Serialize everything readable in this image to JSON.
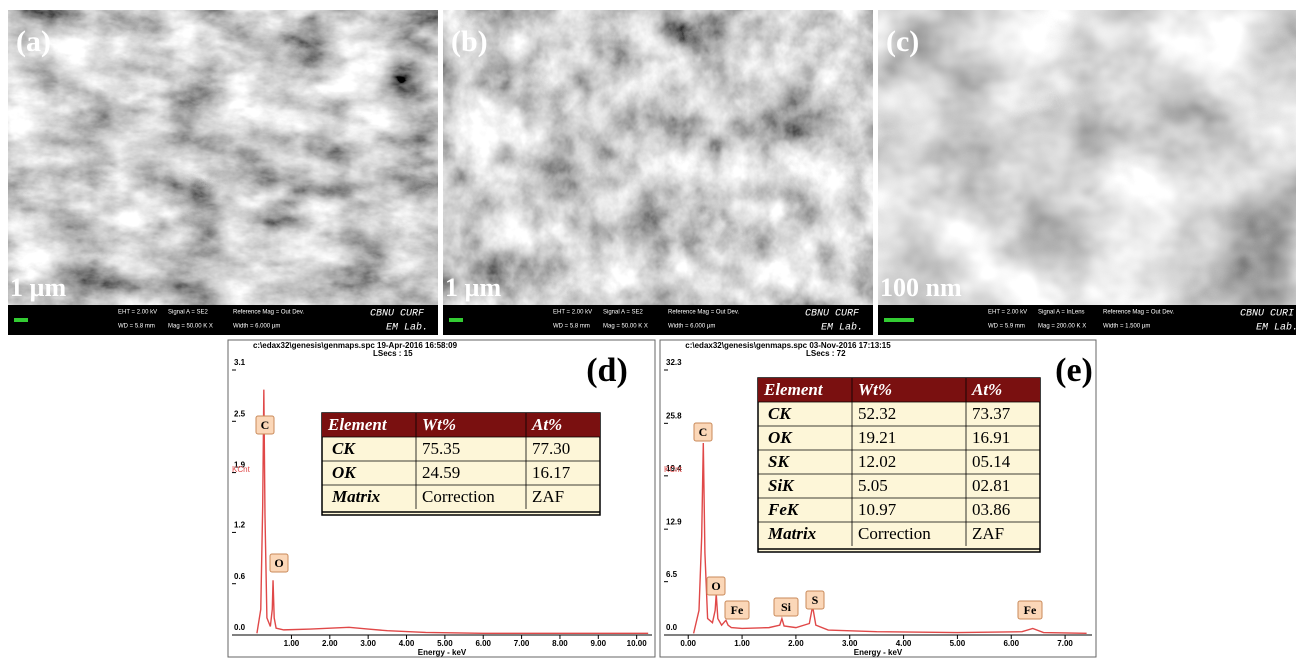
{
  "panels": [
    {
      "label": "(a)",
      "scale_bar": "1 µm",
      "info": [
        "EHT = 2.00 kV",
        "WD = 5.8 mm",
        "Signal A = SE2",
        "Mag = 50.00 K X",
        "Reference Mag = Out Dev.",
        "Width = 6.000 µm"
      ],
      "lab": [
        "CBNU CURF",
        "EM Lab."
      ]
    },
    {
      "label": "(b)",
      "scale_bar": "1 µm",
      "info": [
        "EHT = 2.00 kV",
        "WD = 5.8 mm",
        "Signal A = SE2",
        "Mag = 50.00 K X",
        "Reference Mag = Out Dev.",
        "Width = 6.000 µm"
      ],
      "lab": [
        "CBNU CURF",
        "EM Lab."
      ]
    },
    {
      "label": "(c)",
      "scale_bar": "100 nm",
      "info": [
        "EHT = 2.00 kV",
        "WD = 5.9 mm",
        "Signal A = InLens",
        "Mag = 200.00 K X",
        "Reference Mag = Out Dev.",
        "Width = 1.500 µm"
      ],
      "lab": [
        "CBNU CURI",
        "EM Lab."
      ]
    }
  ],
  "chart_data": [
    {
      "type": "line",
      "label": "(d)",
      "header": "c:\\edax32\\genesis\\genmaps.spc  19-Apr-2016 16:58:09",
      "lsecs": "LSecs : 15",
      "ylabel": "KCnt",
      "xlabel": "Energy - keV",
      "color": "#e04848",
      "x": [
        0.1,
        0.2,
        0.25,
        0.28,
        0.31,
        0.36,
        0.45,
        0.5,
        0.52,
        0.55,
        0.6,
        0.8,
        1.5,
        2.0,
        2.5,
        3.0,
        3.5,
        4.5,
        6,
        8,
        10.3
      ],
      "values": [
        0.02,
        0.3,
        1.5,
        2.87,
        1.4,
        0.2,
        0.1,
        0.3,
        0.64,
        0.2,
        0.08,
        0.06,
        0.07,
        0.08,
        0.09,
        0.07,
        0.05,
        0.03,
        0.02,
        0.02,
        0.02
      ],
      "xlim": [
        -0.55,
        10.4
      ],
      "ylim": [
        0,
        3.1
      ],
      "xticks": [
        {
          "value": 1,
          "label": "1.00"
        },
        {
          "value": 2,
          "label": "2.00"
        },
        {
          "value": 3,
          "label": "3.00"
        },
        {
          "value": 4,
          "label": "4.00"
        },
        {
          "value": 5,
          "label": "5.00"
        },
        {
          "value": 6,
          "label": "6.00"
        },
        {
          "value": 7,
          "label": "7.00"
        },
        {
          "value": 8,
          "label": "8.00"
        },
        {
          "value": 9,
          "label": "9.00"
        },
        {
          "value": 10,
          "label": "10.00"
        }
      ],
      "yticks": [
        {
          "value": 0,
          "label": "0.0"
        },
        0.6,
        1.2,
        1.9,
        2.5,
        3.1
      ],
      "peak_labels": [
        "C",
        "O"
      ],
      "table": {
        "header": [
          "Element",
          "Wt%",
          "At%"
        ],
        "rows": [
          [
            "CK",
            "75.35",
            "77.30"
          ],
          [
            "OK",
            "24.59",
            "16.17"
          ],
          [
            "Matrix",
            "Correction",
            "ZAF"
          ]
        ]
      }
    },
    {
      "type": "line",
      "label": "(e)",
      "header": "c:\\edax32\\genesis\\genmaps.spc  03-Nov-2016 17:13:15",
      "lsecs": "LSecs : 72",
      "ylabel": "KCnt",
      "xlabel": "Energy - keV",
      "color": "#e04848",
      "x": [
        0.1,
        0.2,
        0.25,
        0.28,
        0.31,
        0.36,
        0.45,
        0.5,
        0.52,
        0.55,
        0.62,
        0.7,
        0.74,
        0.8,
        1.0,
        1.5,
        1.7,
        1.74,
        1.78,
        2.0,
        2.25,
        2.31,
        2.37,
        2.6,
        3.5,
        5,
        6.2,
        6.4,
        6.6,
        7.4
      ],
      "values": [
        0.2,
        3,
        12,
        23.4,
        10,
        2,
        1.5,
        3,
        5,
        2,
        1.2,
        1.8,
        1.2,
        0.9,
        0.8,
        0.9,
        1.2,
        2,
        1.1,
        0.9,
        1.4,
        3.5,
        1.2,
        0.6,
        0.4,
        0.3,
        0.4,
        0.8,
        0.3,
        0.2
      ],
      "xlim": [
        -0.45,
        7.5
      ],
      "ylim": [
        0,
        32.3
      ],
      "xticks": [
        {
          "value": 0,
          "label": "0.00"
        },
        {
          "value": 1,
          "label": "1.00"
        },
        {
          "value": 2,
          "label": "2.00"
        },
        {
          "value": 3,
          "label": "3.00"
        },
        {
          "value": 4,
          "label": "4.00"
        },
        {
          "value": 5,
          "label": "5.00"
        },
        {
          "value": 6,
          "label": "6.00"
        },
        {
          "value": 7,
          "label": "7.00"
        }
      ],
      "yticks": [
        {
          "value": 0,
          "label": "0.0"
        },
        6.5,
        12.9,
        19.4,
        25.8,
        32.3
      ],
      "peak_labels": [
        "C",
        "O",
        "Fe",
        "Si",
        "S",
        "Fe"
      ],
      "table": {
        "header": [
          "Element",
          "Wt%",
          "At%"
        ],
        "rows": [
          [
            "CK",
            "52.32",
            "73.37"
          ],
          [
            "OK",
            "19.21",
            "16.91"
          ],
          [
            "SK",
            "12.02",
            "05.14"
          ],
          [
            "SiK",
            "5.05",
            "02.81"
          ],
          [
            "FeK",
            "10.97",
            "03.86"
          ],
          [
            "Matrix",
            "Correction",
            "ZAF"
          ]
        ]
      }
    }
  ]
}
